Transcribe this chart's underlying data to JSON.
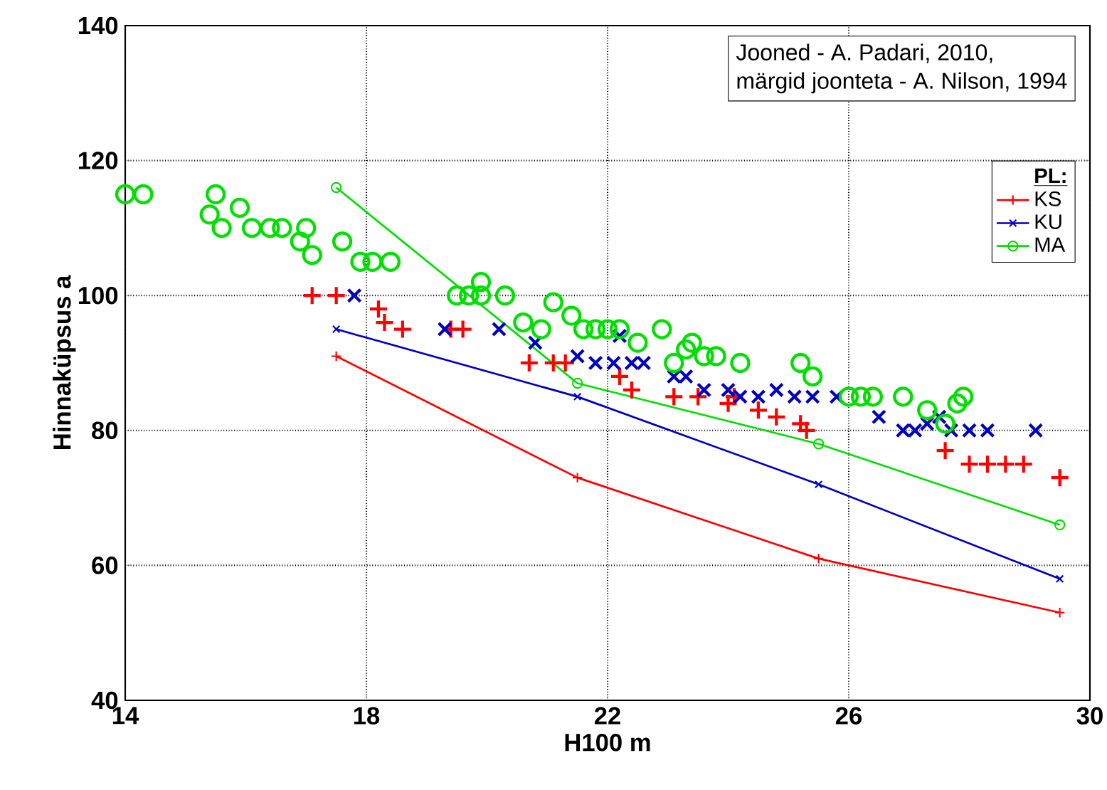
{
  "chart_data": {
    "type": "scatter",
    "xlabel": "H100 m",
    "ylabel": "Hinnaküpsus a",
    "legend_title": "PL:",
    "annotations": [
      "Jooned - A. Padari, 2010,",
      "märgid joonteta - A. Nilson, 1994"
    ],
    "xlim": [
      14,
      30
    ],
    "xticks": [
      14,
      18,
      22,
      26,
      30
    ],
    "ylim": [
      40,
      140
    ],
    "yticks": [
      40,
      60,
      80,
      100,
      120,
      140
    ],
    "grid": true,
    "legend": "top right",
    "series": [
      {
        "name": "KS",
        "type": "line",
        "color": "#ff0000",
        "marker": "plus",
        "x": [
          17.5,
          21.5,
          25.5,
          29.5
        ],
        "values": [
          91,
          73,
          61,
          53
        ]
      },
      {
        "name": "KU",
        "type": "line",
        "color": "#0000c0",
        "marker": "cross",
        "x": [
          17.5,
          21.5,
          25.5,
          29.5
        ],
        "values": [
          95,
          85,
          72,
          58
        ]
      },
      {
        "name": "MA",
        "type": "line",
        "color": "#00e000",
        "marker": "circle",
        "x": [
          17.5,
          21.5,
          25.5,
          29.5
        ],
        "values": [
          116,
          87,
          78,
          66
        ]
      },
      {
        "color": "#ff0000",
        "marker": "plus",
        "x": [
          17.1,
          17.5,
          18.2,
          18.3,
          18.6,
          19.4,
          19.6,
          20.7,
          21.1,
          21.3,
          22.2,
          22.4,
          23.1,
          23.5,
          24.0,
          24.1,
          24.5,
          24.8,
          25.2,
          25.3,
          27.6,
          28.0,
          28.3,
          28.6,
          28.9,
          29.5
        ],
        "values": [
          100,
          100,
          98,
          96,
          95,
          95,
          95,
          90,
          90,
          90,
          88,
          86,
          85,
          85,
          84,
          85,
          83,
          82,
          81,
          80,
          77,
          75,
          75,
          75,
          75,
          73
        ]
      },
      {
        "color": "#0000c0",
        "marker": "cross",
        "x": [
          17.8,
          19.3,
          20.2,
          20.8,
          21.5,
          21.8,
          22.1,
          22.2,
          22.4,
          22.6,
          23.1,
          23.3,
          23.6,
          24.0,
          24.2,
          24.5,
          24.8,
          25.1,
          25.4,
          25.8,
          26.5,
          26.9,
          27.1,
          27.3,
          27.5,
          27.7,
          28.0,
          28.3,
          29.1
        ],
        "values": [
          100,
          95,
          95,
          93,
          91,
          90,
          90,
          94,
          90,
          90,
          88,
          88,
          86,
          86,
          85,
          85,
          86,
          85,
          85,
          85,
          82,
          80,
          80,
          81,
          82,
          80,
          80,
          80,
          80
        ]
      },
      {
        "color": "#00e000",
        "marker": "circle",
        "x": [
          14.0,
          14.3,
          15.4,
          15.5,
          15.6,
          15.9,
          16.1,
          16.4,
          16.6,
          16.9,
          17.0,
          17.1,
          17.6,
          17.9,
          18.1,
          18.4,
          19.5,
          19.7,
          19.9,
          19.9,
          20.3,
          20.6,
          20.9,
          21.1,
          21.4,
          21.6,
          21.8,
          22.0,
          22.2,
          22.5,
          22.9,
          23.1,
          23.3,
          23.4,
          23.6,
          23.8,
          24.2,
          25.2,
          25.4,
          26.0,
          26.2,
          26.4,
          26.9,
          27.3,
          27.6,
          27.8,
          27.9
        ],
        "values": [
          115,
          115,
          112,
          115,
          110,
          113,
          110,
          110,
          110,
          108,
          110,
          106,
          108,
          105,
          105,
          105,
          100,
          100,
          102,
          100,
          100,
          96,
          95,
          99,
          97,
          95,
          95,
          95,
          95,
          93,
          95,
          90,
          92,
          93,
          91,
          91,
          90,
          90,
          88,
          85,
          85,
          85,
          85,
          83,
          81,
          84,
          85
        ]
      }
    ]
  }
}
